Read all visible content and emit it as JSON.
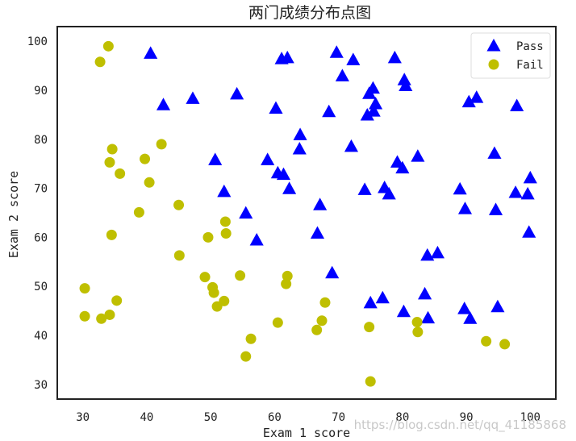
{
  "chart_data": {
    "type": "scatter",
    "title": "两门成绩分布点图",
    "xlabel": "Exam 1 score",
    "ylabel": "Exam 2 score",
    "xlim": [
      26,
      104
    ],
    "ylim": [
      27,
      103
    ],
    "xticks": [
      30,
      40,
      50,
      60,
      70,
      80,
      90,
      100
    ],
    "yticks": [
      30,
      40,
      50,
      60,
      70,
      80,
      90,
      100
    ],
    "grid": false,
    "legend_position": "top-right",
    "series": [
      {
        "name": "Pass",
        "marker": "triangle",
        "color": "#0000ff",
        "points": [
          [
            40.6,
            97.5
          ],
          [
            42.6,
            87.0
          ],
          [
            47.2,
            88.3
          ],
          [
            54.1,
            89.2
          ],
          [
            61.1,
            96.4
          ],
          [
            62.0,
            96.6
          ],
          [
            69.7,
            97.7
          ],
          [
            72.3,
            96.2
          ],
          [
            78.8,
            96.6
          ],
          [
            80.3,
            92.1
          ],
          [
            80.5,
            90.9
          ],
          [
            70.6,
            92.9
          ],
          [
            75.4,
            90.4
          ],
          [
            74.8,
            89.3
          ],
          [
            75.8,
            87.2
          ],
          [
            75.5,
            85.7
          ],
          [
            74.5,
            84.9
          ],
          [
            68.5,
            85.6
          ],
          [
            60.2,
            86.3
          ],
          [
            64.0,
            80.9
          ],
          [
            63.9,
            78.0
          ],
          [
            72.0,
            78.5
          ],
          [
            58.9,
            75.8
          ],
          [
            50.7,
            75.8
          ],
          [
            60.5,
            73.1
          ],
          [
            61.4,
            72.8
          ],
          [
            62.3,
            69.9
          ],
          [
            52.1,
            69.3
          ],
          [
            79.2,
            75.3
          ],
          [
            80.0,
            74.1
          ],
          [
            82.4,
            76.5
          ],
          [
            74.1,
            69.7
          ],
          [
            77.2,
            70.1
          ],
          [
            77.9,
            68.8
          ],
          [
            67.1,
            66.6
          ],
          [
            55.5,
            64.9
          ],
          [
            57.2,
            59.4
          ],
          [
            66.7,
            60.8
          ],
          [
            89.0,
            69.8
          ],
          [
            89.8,
            65.8
          ],
          [
            90.4,
            87.6
          ],
          [
            91.6,
            88.5
          ],
          [
            97.9,
            86.8
          ],
          [
            94.4,
            77.1
          ],
          [
            100.0,
            72.1
          ],
          [
            97.7,
            69.1
          ],
          [
            99.6,
            68.8
          ],
          [
            94.6,
            65.6
          ],
          [
            99.8,
            61.0
          ],
          [
            69.0,
            52.7
          ],
          [
            83.9,
            56.3
          ],
          [
            85.5,
            56.8
          ],
          [
            83.5,
            48.4
          ],
          [
            84.0,
            43.5
          ],
          [
            75.0,
            46.6
          ],
          [
            76.9,
            47.6
          ],
          [
            80.2,
            44.8
          ],
          [
            89.7,
            45.4
          ],
          [
            90.6,
            43.4
          ],
          [
            94.9,
            45.8
          ]
        ]
      },
      {
        "name": "Fail",
        "marker": "circle",
        "color": "#bfbf00",
        "points": [
          [
            34.0,
            99.0
          ],
          [
            32.7,
            95.8
          ],
          [
            42.3,
            79.0
          ],
          [
            34.6,
            78.0
          ],
          [
            39.7,
            76.0
          ],
          [
            34.2,
            75.3
          ],
          [
            35.8,
            73.0
          ],
          [
            40.4,
            71.2
          ],
          [
            38.8,
            65.1
          ],
          [
            45.0,
            66.6
          ],
          [
            34.5,
            60.5
          ],
          [
            52.3,
            63.2
          ],
          [
            49.6,
            60.0
          ],
          [
            52.4,
            60.8
          ],
          [
            45.1,
            56.3
          ],
          [
            49.1,
            51.9
          ],
          [
            50.3,
            49.8
          ],
          [
            50.5,
            48.7
          ],
          [
            52.1,
            47.0
          ],
          [
            51.0,
            45.9
          ],
          [
            54.6,
            52.2
          ],
          [
            62.0,
            52.1
          ],
          [
            61.8,
            50.5
          ],
          [
            30.3,
            49.6
          ],
          [
            35.3,
            47.1
          ],
          [
            30.3,
            43.9
          ],
          [
            34.2,
            44.2
          ],
          [
            32.9,
            43.4
          ],
          [
            67.9,
            46.7
          ],
          [
            60.5,
            42.6
          ],
          [
            67.4,
            43.0
          ],
          [
            66.6,
            41.1
          ],
          [
            56.3,
            39.3
          ],
          [
            55.5,
            35.7
          ],
          [
            74.8,
            41.7
          ],
          [
            82.3,
            42.7
          ],
          [
            82.4,
            40.7
          ],
          [
            93.1,
            38.8
          ],
          [
            96.0,
            38.2
          ],
          [
            75.0,
            30.6
          ]
        ]
      }
    ]
  },
  "watermark": "https://blog.csdn.net/qq_41185868"
}
